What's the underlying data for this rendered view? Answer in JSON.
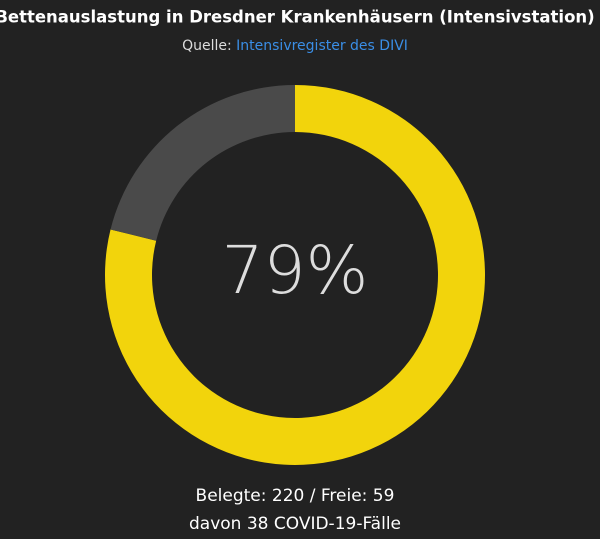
{
  "chart_data": {
    "type": "donut",
    "title": "Bettenauslastung in Dresdner Krankenhäusern (Intensivstation)",
    "source_label": "Quelle:",
    "source_link": "Intensivregister des DIVI",
    "values": [
      220,
      59
    ],
    "colors": [
      "#f2d40c",
      "#4a4a4a"
    ],
    "center_label": "79%",
    "footer_lines": [
      "Belegte: 220 / Freie: 59",
      "davon 38 COVID-19-Fälle"
    ]
  }
}
